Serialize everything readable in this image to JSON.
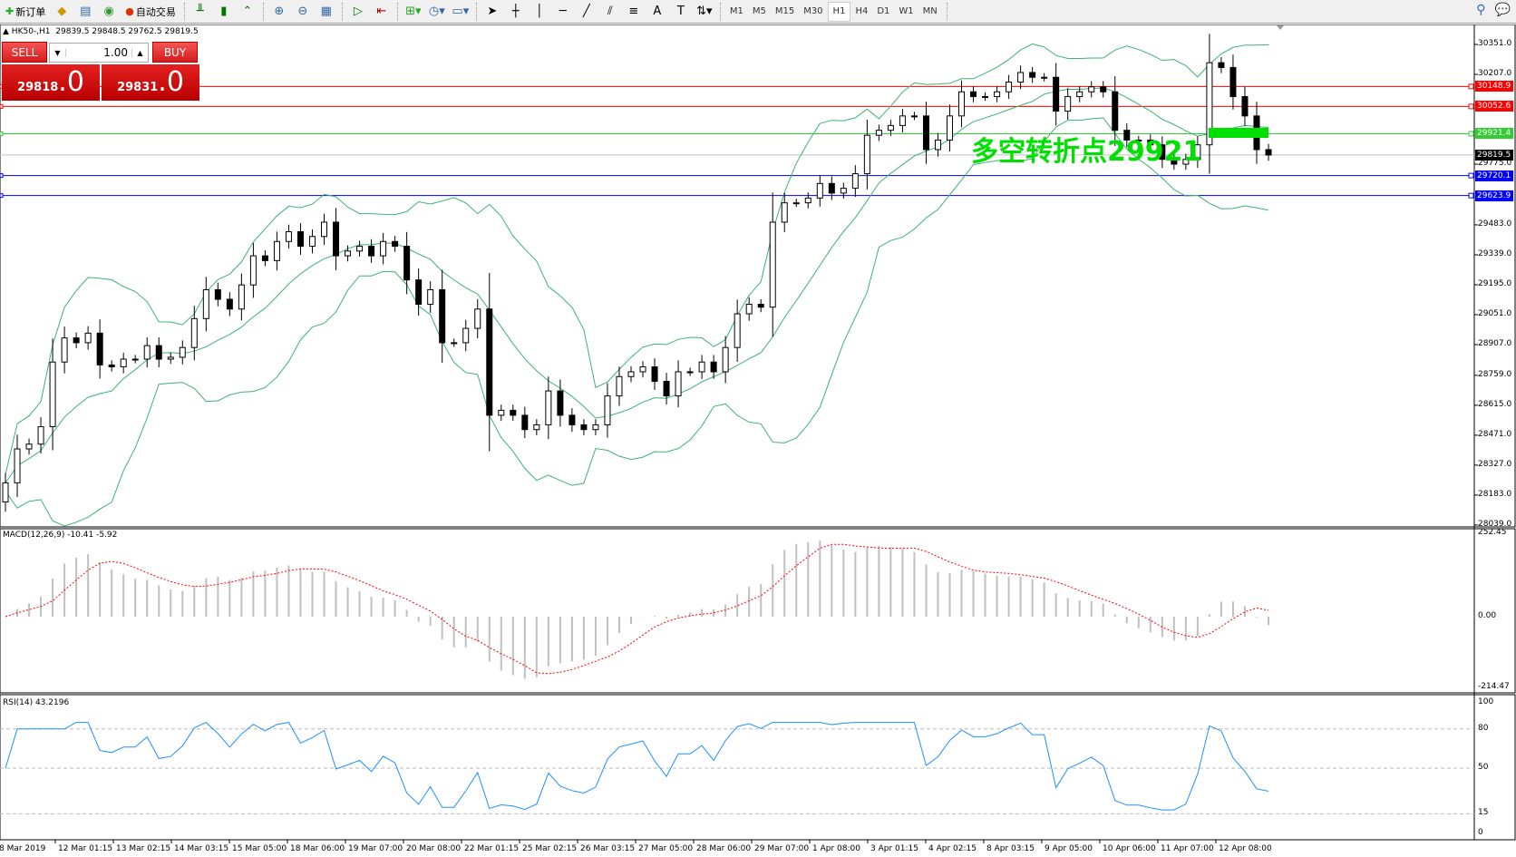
{
  "toolbar": {
    "new_order": "新订单",
    "auto_trading": "自动交易",
    "timeframes": [
      "M1",
      "M5",
      "M15",
      "M30",
      "H1",
      "H4",
      "D1",
      "W1",
      "MN"
    ],
    "active_timeframe": "H1",
    "icons": [
      "new-order-icon",
      "market-watch-icon",
      "navigator-icon",
      "signals-icon",
      "auto-trading-icon",
      "bar-chart-icon",
      "candlestick-icon",
      "line-chart-icon",
      "zoom-in-icon",
      "zoom-out-icon",
      "tile-windows-icon",
      "autoscroll-icon",
      "chart-shift-icon",
      "indicators-icon",
      "periods-icon",
      "templates-icon",
      "cursor-icon",
      "crosshair-icon",
      "vertical-line-icon",
      "horizontal-line-icon",
      "trendline-icon",
      "equidistant-channel-icon",
      "fibonacci-icon",
      "text-icon",
      "text-label-icon",
      "arrows-icon",
      "search-icon",
      "chat-icon"
    ]
  },
  "header": {
    "symbol": "HK50-,H1",
    "ohlc": "29839.5 29848.5 29762.5 29819.5"
  },
  "trade_panel": {
    "sell_label": "SELL",
    "buy_label": "BUY",
    "lot": "1.00",
    "sell_price_main": "29818",
    "sell_price_frac": ".0",
    "buy_price_main": "29831",
    "buy_price_frac": ".0"
  },
  "annotation": "多空转折点29921",
  "price_axis": [
    "30351.0",
    "30207.0",
    "29483.0",
    "29339.0",
    "29195.0",
    "29051.0",
    "28907.0",
    "28759.0",
    "28615.0",
    "28471.0",
    "28327.0",
    "28183.0",
    "28039.0",
    "29775.0"
  ],
  "levels": [
    {
      "value": "30148.9",
      "color": "#ff0000"
    },
    {
      "value": "30052.6",
      "color": "#ff0000"
    },
    {
      "value": "29921.4",
      "color": "#32cd32"
    },
    {
      "value": "29819.5",
      "color": "#000000"
    },
    {
      "value": "29720.1",
      "color": "#0000ff"
    },
    {
      "value": "29623.9",
      "color": "#0000ff"
    }
  ],
  "macd": {
    "label": "MACD(12,26,9) -10.41 -5.92",
    "axis": [
      "252.45",
      "0.00",
      "-214.47"
    ],
    "signal_color": "#ff0000",
    "hist_color": "#c0c0c0"
  },
  "rsi": {
    "label": "RSI(14) 43.2196",
    "axis": [
      "100",
      "80",
      "50",
      "15",
      "0"
    ],
    "color": "#1e90ff"
  },
  "time_axis": [
    "8 Mar 2019",
    "12 Mar 01:15",
    "13 Mar 02:15",
    "14 Mar 03:15",
    "15 Mar 05:00",
    "18 Mar 06:00",
    "19 Mar 07:00",
    "20 Mar 08:00",
    "22 Mar 01:15",
    "25 Mar 02:15",
    "26 Mar 03:15",
    "27 Mar 05:00",
    "28 Mar 06:00",
    "29 Mar 07:00",
    "1 Apr 08:00",
    "3 Apr 01:15",
    "4 Apr 02:15",
    "8 Apr 03:15",
    "9 Apr 05:00",
    "10 Apr 06:00",
    "11 Apr 07:00",
    "12 Apr 08:00"
  ],
  "chart_data": {
    "type": "candlestick",
    "symbol": "HK50-",
    "timeframe": "H1",
    "ylim": [
      28039,
      30351
    ],
    "first_open": 28150,
    "closes": [
      28242,
      28405,
      28428,
      28512,
      28823,
      28939,
      28916,
      28962,
      28809,
      28800,
      28837,
      28837,
      28902,
      28837,
      28846,
      28893,
      29032,
      29171,
      29125,
      29078,
      29194,
      29334,
      29311,
      29403,
      29450,
      29380,
      29427,
      29496,
      29334,
      29357,
      29380,
      29334,
      29403,
      29380,
      29218,
      29101,
      29171,
      28916,
      28916,
      28985,
      29078,
      28567,
      28591,
      28567,
      28498,
      28521,
      28684,
      28567,
      28521,
      28498,
      28521,
      28660,
      28753,
      28776,
      28800,
      28730,
      28660,
      28776,
      28776,
      28823,
      28776,
      28893,
      29055,
      29101,
      29087,
      29496,
      29589,
      29589,
      29612,
      29682,
      29636,
      29659,
      29729,
      29914,
      29938,
      29961,
      30007,
      30007,
      29845,
      29891,
      30007,
      30123,
      30100,
      30100,
      30123,
      30170,
      30216,
      30193,
      30193,
      30030,
      30100,
      30123,
      30147,
      30123,
      29938,
      29891,
      29891,
      29868,
      29798,
      29775,
      29798,
      29868,
      30263,
      30240,
      30100,
      30007,
      29845,
      29819
    ],
    "bull_color": "#ffffff",
    "bear_color": "#000000",
    "bands_color": "#3cb371"
  }
}
